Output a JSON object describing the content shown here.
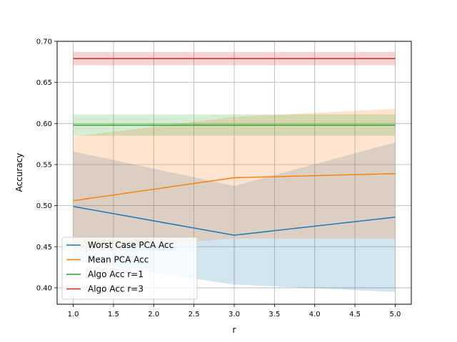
{
  "chart_data": {
    "type": "line",
    "title": "",
    "xlabel": "r",
    "ylabel": "Accuracy",
    "xlim": [
      0.8,
      5.2
    ],
    "ylim": [
      0.38,
      0.7
    ],
    "grid": true,
    "legend_position": "lower-left",
    "x_ticks": [
      "1.0",
      "1.5",
      "2.0",
      "2.5",
      "3.0",
      "3.5",
      "4.0",
      "4.5",
      "5.0"
    ],
    "y_ticks": [
      "0.40",
      "0.45",
      "0.50",
      "0.55",
      "0.60",
      "0.65",
      "0.70"
    ],
    "x": [
      1,
      3,
      5
    ],
    "series": [
      {
        "name": "Worst Case PCA Acc",
        "color": "#1f77b4",
        "values": [
          0.499,
          0.464,
          0.486
        ],
        "band_low": [
          0.433,
          0.404,
          0.395
        ],
        "band_high": [
          0.566,
          0.524,
          0.577
        ]
      },
      {
        "name": "Mean PCA Acc",
        "color": "#ff7f0e",
        "values": [
          0.506,
          0.534,
          0.539
        ],
        "band_low": [
          0.446,
          0.46,
          0.46
        ],
        "band_high": [
          0.584,
          0.608,
          0.618
        ]
      },
      {
        "name": "Algo Acc r=1",
        "color": "#2ca02c",
        "values": [
          0.598,
          0.598,
          0.598
        ],
        "band_low": [
          0.585,
          0.585,
          0.585
        ],
        "band_high": [
          0.611,
          0.611,
          0.611
        ]
      },
      {
        "name": "Algo Acc r=3",
        "color": "#d62728",
        "values": [
          0.679,
          0.679,
          0.679
        ],
        "band_low": [
          0.671,
          0.671,
          0.671
        ],
        "band_high": [
          0.687,
          0.687,
          0.687
        ]
      }
    ]
  }
}
